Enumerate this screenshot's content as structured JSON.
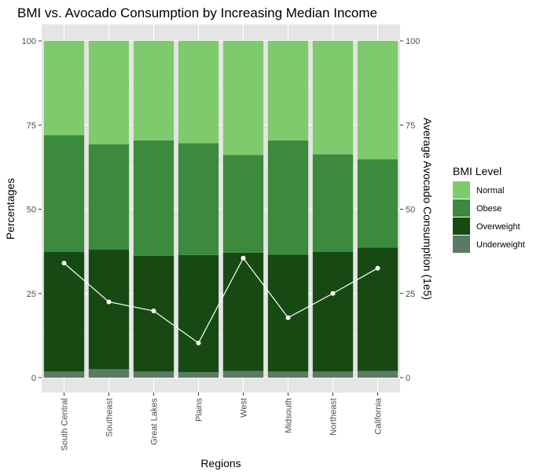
{
  "chart_data": {
    "type": "bar",
    "title": "BMI vs. Avocado Consumption by Increasing Median Income",
    "xlabel": "Regions",
    "ylabel": "Percentages",
    "y2label": "Average Avocado Consumption (1e5)",
    "categories": [
      "South Central",
      "Southeast",
      "Great Lakes",
      "Plains",
      "West",
      "Midsouth",
      "Northeast",
      "California"
    ],
    "ylim": [
      0,
      100
    ],
    "y2lim": [
      0,
      100
    ],
    "yticks": [
      0,
      25,
      50,
      75,
      100
    ],
    "stacked": true,
    "series": [
      {
        "name": "Underweight",
        "color": "#5a7a64",
        "values": [
          1.8,
          2.5,
          1.8,
          1.6,
          2.0,
          1.8,
          1.8,
          2.0
        ]
      },
      {
        "name": "Overweight",
        "color": "#174a13",
        "values": [
          35.5,
          35.5,
          34.4,
          34.8,
          35.1,
          34.7,
          35.5,
          36.6
        ]
      },
      {
        "name": "Obese",
        "color": "#3b8a3d",
        "values": [
          34.7,
          31.3,
          34.2,
          33.2,
          29.0,
          33.9,
          29.0,
          26.2
        ]
      },
      {
        "name": "Normal",
        "color": "#80ca6e",
        "values": [
          28.0,
          30.7,
          29.6,
          30.4,
          33.9,
          29.6,
          33.7,
          35.2
        ]
      }
    ],
    "line_series": {
      "name": "Average Avocado Consumption",
      "axis": "secondary",
      "color": "#ffffff",
      "values": [
        34.0,
        22.5,
        19.8,
        10.3,
        35.5,
        17.8,
        25.0,
        32.5
      ]
    },
    "legend": {
      "title": "BMI Level",
      "position": "right",
      "items": [
        "Normal",
        "Obese",
        "Overweight",
        "Underweight"
      ]
    },
    "grid": true,
    "panel_background": "#e5e5e5",
    "grid_color": "#ffffff"
  }
}
